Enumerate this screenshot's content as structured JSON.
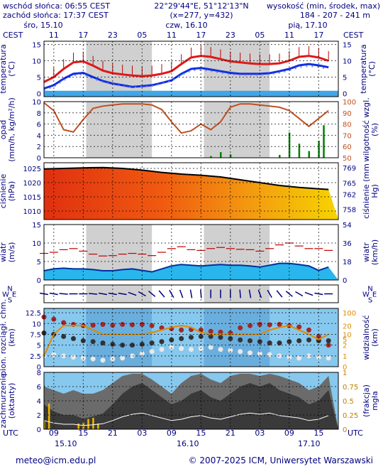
{
  "header": {
    "sunrise": "wschód słońca: 06:55 CEST",
    "sunset": "zachód słońca: 17:37 CEST",
    "coords": "22°29'44\"E, 51°12'13\"N",
    "grid": "(x=277, y=432)",
    "alt_label": "wysokość (min, środek, max)",
    "alt_values": "184 - 207 - 241 m",
    "tz_left": "CEST",
    "tz_right": "CEST",
    "days_top": [
      "śro, 15.10",
      "czw, 16.10",
      "pią, 17.10"
    ],
    "hours_top": [
      "11",
      "17",
      "23",
      "05",
      "11",
      "17",
      "23",
      "05",
      "11",
      "17"
    ],
    "tz_bottom_left": "UTC",
    "tz_bottom_right": "UTC",
    "hours_bottom": [
      "09",
      "15",
      "21",
      "03",
      "09",
      "15",
      "21",
      "03",
      "09",
      "15"
    ],
    "days_bottom": [
      "15.10",
      "16.10",
      "17.10"
    ]
  },
  "footer": {
    "email": "meteo@icm.edu.pl",
    "copyright": "© 2007-2025 ICM, Uniwersytet Warszawski"
  },
  "colors": {
    "navy": "#000080",
    "temp_max": "#e01818",
    "temp_mean": "#1030e0",
    "night_band": "#d0d0d0",
    "precip": "#008000",
    "humidity": "#c05020",
    "wind": "#1a6fd0",
    "gust": "#c00000",
    "visibility": "#e08a00"
  },
  "chart_data": [
    {
      "type": "line",
      "panel": "temperature",
      "ylabel": "temperatura (°C)",
      "yticks_left": [
        0,
        5,
        10,
        15
      ],
      "yticks_right": [
        0,
        5,
        10,
        15
      ],
      "ylim": [
        -1,
        16
      ],
      "x_hours_from_start": [
        0,
        2,
        4,
        6,
        8,
        10,
        12,
        14,
        16,
        18,
        20,
        22,
        24,
        26,
        28,
        30,
        32,
        34,
        36,
        38,
        40,
        42,
        44,
        46,
        48,
        50,
        52,
        54,
        56,
        58
      ],
      "series": [
        {
          "values": [
            3.5,
            5.0,
            7.5,
            9.5,
            9.8,
            8.5,
            7.0,
            6.2,
            5.8,
            5.5,
            5.3,
            5.5,
            6.0,
            6.8,
            9.0,
            11.0,
            11.5,
            11.2,
            10.5,
            9.8,
            9.5,
            9.2,
            9.0,
            9.0,
            9.2,
            10.0,
            11.2,
            11.5,
            11.0,
            10.0
          ]
        },
        {
          "values": [
            1.5,
            2.5,
            4.5,
            6.0,
            6.3,
            5.0,
            3.8,
            3.0,
            2.5,
            2.0,
            2.2,
            2.5,
            3.2,
            4.0,
            6.0,
            7.5,
            7.8,
            7.3,
            6.8,
            6.3,
            6.0,
            6.0,
            6.0,
            6.2,
            6.8,
            7.5,
            8.6,
            9.0,
            8.6,
            8.0
          ]
        },
        {
          "values": [
            1.0,
            2.0,
            4.0,
            5.5,
            5.8,
            4.5,
            3.5,
            2.8,
            2.2,
            1.8,
            2.0,
            2.2,
            3.0,
            3.8,
            5.6,
            7.0,
            7.2,
            6.8,
            6.3,
            5.8,
            5.6,
            5.6,
            5.6,
            5.8,
            6.3,
            7.0,
            8.0,
            8.4,
            8.0,
            7.5
          ]
        }
      ]
    },
    {
      "type": "line",
      "panel": "precipitation-humidity",
      "ylabel": "opad (mm/h, kg/m²/h)",
      "ylabel_right": "wilgotność wzgl. (%)",
      "yticks_left": [
        0,
        2,
        4,
        6,
        8,
        10
      ],
      "yticks_right": [
        50,
        60,
        70,
        80,
        90,
        100
      ],
      "humidity_x": [
        0,
        2,
        4,
        6,
        8,
        10,
        12,
        14,
        16,
        18,
        20,
        22,
        24,
        26,
        28,
        30,
        32,
        34,
        36,
        38,
        40,
        42,
        44,
        46,
        48,
        50,
        52,
        54,
        56,
        58
      ],
      "humidity": [
        99,
        92,
        75,
        73,
        84,
        94,
        96,
        97,
        98,
        98,
        98,
        97,
        93,
        82,
        72,
        74,
        80,
        75,
        82,
        95,
        98,
        98,
        97,
        96,
        95,
        92,
        85,
        78,
        85,
        92
      ],
      "precip_x": [
        34,
        36,
        38,
        48,
        50,
        52,
        54,
        56,
        57
      ],
      "precip": [
        0.3,
        1.0,
        0.6,
        0.5,
        4.5,
        2.5,
        1.2,
        3.0,
        5.8
      ]
    },
    {
      "type": "area",
      "panel": "pressure",
      "ylabel": "ciśnienie (hPa)",
      "ylabel_right": "ciśnienie (mm Hg)",
      "yticks_left": [
        1010,
        1015,
        1020,
        1025
      ],
      "yticks_right": [
        758,
        762,
        765,
        769
      ],
      "x": [
        0,
        4,
        8,
        12,
        16,
        20,
        24,
        28,
        32,
        36,
        40,
        44,
        48,
        52,
        56,
        58
      ],
      "values": [
        1024.8,
        1025.0,
        1025.2,
        1025.3,
        1025.0,
        1024.4,
        1023.6,
        1023.0,
        1022.6,
        1022.0,
        1021.0,
        1020.0,
        1019.0,
        1018.3,
        1017.8,
        1017.6
      ]
    },
    {
      "type": "bar",
      "panel": "wind",
      "ylabel": "wiatr (m/s)",
      "ylabel_right": "wiatr (km/h)",
      "yticks_left": [
        0,
        5,
        10,
        15
      ],
      "yticks_right": [
        0,
        18,
        36,
        54
      ],
      "x": [
        0,
        2,
        4,
        6,
        8,
        10,
        12,
        14,
        16,
        18,
        20,
        22,
        24,
        26,
        28,
        30,
        32,
        34,
        36,
        38,
        40,
        42,
        44,
        46,
        48,
        50,
        52,
        54,
        56,
        58
      ],
      "speed": [
        2.5,
        3.0,
        3.2,
        3.0,
        3.0,
        2.8,
        2.5,
        2.5,
        2.8,
        3.0,
        2.6,
        2.2,
        3.0,
        3.8,
        4.2,
        4.0,
        3.8,
        4.0,
        4.2,
        4.0,
        4.0,
        3.8,
        3.5,
        4.0,
        4.5,
        4.5,
        4.2,
        3.8,
        2.6,
        3.5
      ],
      "gust": [
        7.2,
        7.5,
        8.2,
        8.5,
        7.8,
        7.0,
        6.5,
        6.6,
        7.0,
        7.2,
        7.0,
        6.6,
        7.5,
        8.5,
        9.0,
        8.2,
        8.0,
        8.5,
        8.8,
        8.5,
        8.3,
        8.2,
        7.8,
        8.5,
        9.5,
        10.0,
        9.2,
        8.5,
        8.5,
        8.0
      ]
    },
    {
      "type": "scatter",
      "panel": "wind-direction",
      "compass_labels": [
        "N",
        "W",
        "S",
        "E"
      ],
      "x": [
        0,
        2,
        4,
        6,
        8,
        10,
        12,
        14,
        16,
        18,
        20,
        22,
        24,
        26,
        28,
        30,
        32,
        34,
        36,
        38,
        40,
        42,
        44,
        46,
        48,
        50,
        52,
        54,
        56,
        58
      ],
      "direction_deg": [
        100,
        100,
        95,
        90,
        90,
        95,
        100,
        100,
        100,
        110,
        120,
        130,
        140,
        150,
        160,
        170,
        175,
        180,
        180,
        180,
        175,
        170,
        160,
        150,
        140,
        130,
        120,
        110,
        100,
        90
      ]
    },
    {
      "type": "scatter",
      "panel": "cloud-base-visibility",
      "ylabel": "pion. rozciągł. chm. (km)",
      "ylabel_right": "widzialność (km)",
      "yticks_left": [
        0.0,
        2.5,
        5.0,
        7.5,
        10.0,
        12.5
      ],
      "yticks_right": [
        0,
        1,
        2,
        5,
        10,
        20,
        100
      ],
      "vis_x": [
        0,
        2,
        4,
        6,
        8,
        10,
        12,
        14,
        16,
        18,
        20,
        22,
        24,
        26,
        28,
        30,
        32,
        34,
        36,
        38,
        40,
        42,
        44,
        46,
        48,
        50,
        52,
        54,
        56,
        58
      ],
      "visibility_km": [
        1,
        10,
        20,
        20,
        20,
        15,
        10,
        10,
        10,
        10,
        10,
        12,
        15,
        18,
        20,
        18,
        12,
        10,
        10,
        10,
        10,
        10,
        10,
        15,
        18,
        20,
        15,
        10,
        5,
        10
      ],
      "cloud_x": [
        0,
        2,
        4,
        6,
        8,
        10,
        12,
        14,
        16,
        18,
        20,
        22,
        24,
        26,
        28,
        30,
        32,
        34,
        36,
        38,
        40,
        42,
        44,
        46,
        48,
        50,
        52,
        54,
        56,
        58
      ],
      "cloud_top_km": [
        11.5,
        11.0,
        10.2,
        9.8,
        9.5,
        9.6,
        9.8,
        9.6,
        9.8,
        9.7,
        9.8,
        9.5,
        9.0,
        8.8,
        8.5,
        8.6,
        8.5,
        8.2,
        8.0,
        7.8,
        9.0,
        9.5,
        9.8,
        9.7,
        9.8,
        9.5,
        9.2,
        8.5,
        7.0,
        5.0
      ],
      "cloud_mid_km": [
        7.8,
        7.5,
        7.0,
        6.5,
        6.0,
        5.8,
        5.5,
        5.2,
        5.0,
        5.0,
        5.2,
        5.5,
        5.8,
        6.2,
        6.5,
        6.8,
        7.0,
        7.0,
        6.8,
        6.5,
        6.2,
        6.0,
        5.8,
        5.5,
        5.5,
        5.8,
        6.0,
        6.2,
        6.0,
        6.0
      ],
      "cloud_base_km": [
        2.5,
        2.8,
        2.5,
        2.2,
        2.0,
        1.8,
        1.5,
        1.8,
        2.0,
        2.5,
        3.0,
        3.5,
        4.0,
        4.5,
        4.2,
        4.0,
        4.2,
        4.5,
        4.0,
        3.8,
        3.5,
        3.2,
        3.0,
        2.8,
        2.5,
        2.2,
        2.0,
        2.5,
        2.2,
        2.0
      ]
    },
    {
      "type": "area",
      "panel": "cloudiness-fog",
      "ylabel": "zachmurzenie (oktanty)",
      "ylabel_right": "mgła (frakcja)",
      "yticks_left": [
        0,
        2,
        4,
        6,
        8
      ],
      "yticks_right": [
        0,
        0.25,
        0.5,
        0.75,
        1
      ],
      "x": [
        0,
        2,
        4,
        6,
        8,
        10,
        12,
        14,
        16,
        18,
        20,
        22,
        24,
        26,
        28,
        30,
        32,
        34,
        36,
        38,
        40,
        42,
        44,
        46,
        48,
        50,
        52,
        54,
        56,
        58
      ],
      "total_cloud": [
        6.0,
        5.5,
        5.0,
        5.5,
        5.0,
        5.0,
        5.5,
        6.5,
        7.5,
        7.8,
        7.8,
        7.0,
        6.0,
        5.0,
        6.5,
        7.5,
        7.8,
        7.0,
        6.5,
        7.5,
        7.8,
        7.8,
        7.5,
        7.8,
        7.5,
        7.0,
        6.5,
        5.5,
        6.0,
        7.5
      ],
      "low_cloud": [
        3.5,
        2.5,
        2.0,
        2.0,
        1.5,
        1.8,
        2.2,
        3.5,
        5.0,
        6.0,
        6.5,
        5.5,
        4.5,
        3.5,
        4.0,
        5.0,
        5.5,
        4.5,
        4.0,
        5.0,
        6.0,
        6.5,
        6.0,
        6.5,
        5.5,
        5.0,
        4.5,
        3.5,
        4.0,
        5.5
      ],
      "fog_x": [
        0,
        1,
        7,
        8,
        9,
        10,
        11
      ],
      "fog": [
        0.15,
        0.45,
        0.1,
        0.12,
        0.18,
        0.2,
        0.1
      ]
    }
  ]
}
